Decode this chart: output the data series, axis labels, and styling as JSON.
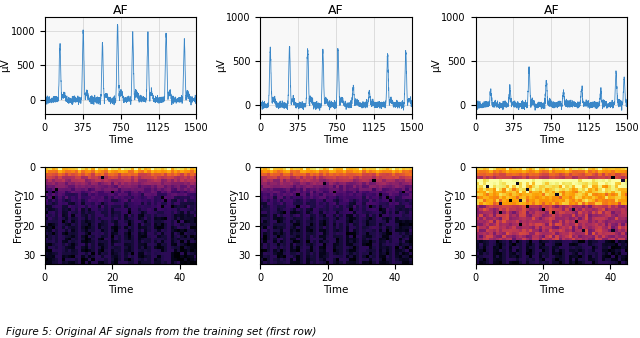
{
  "title": "AF",
  "ecg_ylabel": "μV",
  "ecg_xlabel": "Time",
  "ecg_xticks": [
    0,
    375,
    750,
    1125,
    1500
  ],
  "ecg_xlim": [
    0,
    1500
  ],
  "spec_ylabel": "Frequency",
  "spec_xlabel": "Time",
  "spec_yticks": [
    0,
    10,
    20,
    30
  ],
  "spec_xticks": [
    0,
    20,
    40
  ],
  "colormap": "inferno",
  "ecg_color": "#3a87c8",
  "grid_color": "#cccccc",
  "figsize": [
    6.4,
    3.38
  ],
  "dpi": 100,
  "caption": "Figure 5: Original AF signals from the training set (first row)",
  "ecg1_peaks": [
    150,
    380,
    570,
    720,
    870,
    1020,
    1200,
    1380
  ],
  "ecg1_heights": [
    780,
    1000,
    820,
    1100,
    960,
    960,
    960,
    860
  ],
  "ecg2_peaks": [
    100,
    290,
    470,
    620,
    770,
    920,
    1080,
    1260,
    1440
  ],
  "ecg2_heights": [
    620,
    640,
    640,
    620,
    630,
    200,
    160,
    580,
    600
  ],
  "ecg3_peaks": [
    150,
    340,
    530,
    700,
    870,
    1050,
    1240,
    1390,
    1470
  ],
  "ecg3_heights": [
    150,
    200,
    420,
    260,
    150,
    180,
    150,
    370,
    300
  ],
  "ecg1_ylim": [
    -200,
    1200
  ],
  "ecg2_ylim": [
    -100,
    1000
  ],
  "ecg3_ylim": [
    -100,
    1000
  ],
  "ecg1_yticks": [
    0,
    500,
    1000
  ],
  "ecg2_yticks": [
    0,
    500,
    1000
  ],
  "ecg3_yticks": [
    0,
    500,
    1000
  ],
  "spec1_stripes": [
    4,
    10,
    15,
    19,
    23,
    27,
    32,
    37
  ],
  "spec2_stripes": [
    3,
    8,
    13,
    17,
    21,
    25,
    30,
    35,
    40
  ],
  "spec3_stripes": [
    4,
    9,
    14,
    18,
    22,
    27,
    33,
    37
  ],
  "spec3_warm_band": true
}
